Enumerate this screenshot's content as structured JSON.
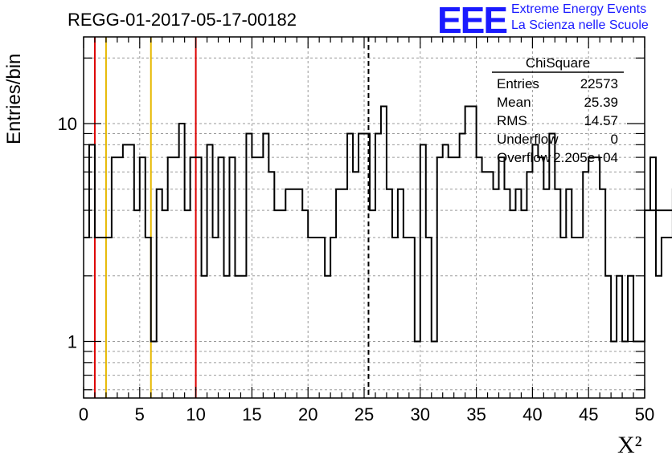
{
  "header": {
    "run_id": "REGG-01-2017-05-17-00182",
    "logo_text": "EEE",
    "logo_line1": "Extreme Energy Events",
    "logo_line2": "La Scienza nelle Scuole"
  },
  "stats": {
    "title": "ChiSquare",
    "rows": [
      {
        "label": "Entries",
        "value": "22573"
      },
      {
        "label": "Mean",
        "value": "25.39"
      },
      {
        "label": "RMS",
        "value": "14.57"
      },
      {
        "label": "Underflow",
        "value": "0"
      },
      {
        "label": "Overflow",
        "value": "2.205e+04"
      }
    ]
  },
  "chart_data": {
    "type": "histogram",
    "title": "REGG-01-2017-05-17-00182",
    "xlabel": "X²",
    "ylabel": "Entries/bin",
    "xlim": [
      0,
      50
    ],
    "ylim": [
      0.55,
      25
    ],
    "yscale": "log",
    "grid": true,
    "x_ticks": [
      "0",
      "5",
      "10",
      "15",
      "20",
      "25",
      "30",
      "35",
      "40",
      "45",
      "50"
    ],
    "y_ticks": [
      "1",
      "10"
    ],
    "bin_width": 0.5,
    "values": [
      3,
      8,
      3,
      3,
      3,
      7,
      7,
      8,
      8,
      4,
      7,
      3,
      1,
      5,
      4,
      7,
      7,
      10,
      4,
      7,
      7,
      2,
      8,
      3,
      7,
      2,
      7,
      2,
      2,
      9,
      7,
      7,
      9,
      6,
      4,
      4,
      5,
      5,
      5,
      4,
      3,
      3,
      3,
      2,
      3,
      5,
      5,
      9,
      6,
      9,
      9,
      4,
      9,
      12,
      5,
      3,
      5,
      3,
      3,
      1,
      8,
      3,
      1,
      7,
      8,
      7,
      7,
      9,
      12,
      12,
      7,
      6,
      6,
      5,
      7,
      5,
      4,
      5,
      4,
      6,
      8,
      7,
      5,
      9,
      5,
      3,
      5,
      3,
      3,
      6,
      7,
      7,
      5,
      2,
      1,
      2,
      1,
      2,
      1,
      1,
      4,
      7,
      2,
      3,
      3,
      5,
      5,
      5,
      10,
      4,
      5,
      3,
      5,
      8,
      7,
      2,
      1,
      3,
      1,
      4
    ],
    "vertical_lines": [
      {
        "x": 1,
        "color": "#dd0000",
        "style": "solid"
      },
      {
        "x": 2,
        "color": "#e6b800",
        "style": "solid"
      },
      {
        "x": 6,
        "color": "#e6b800",
        "style": "solid"
      },
      {
        "x": 10,
        "color": "#dd0000",
        "style": "solid"
      },
      {
        "x": 25.39,
        "color": "#000000",
        "style": "dashed"
      }
    ]
  }
}
